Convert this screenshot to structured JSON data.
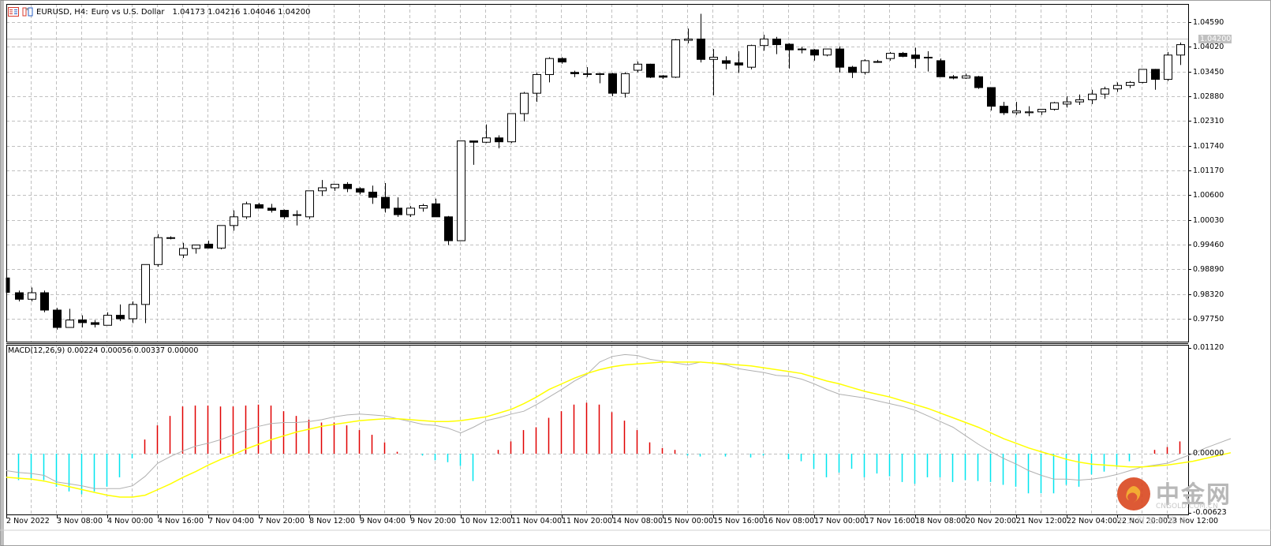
{
  "window": {
    "symbol_title": "EURUSD, H4:",
    "description": "Euro vs U.S. Dollar",
    "ohlc": "1.04173 1.04216 1.04046 1.04200",
    "icons": [
      "chart-list-icon",
      "chart-template-icon"
    ]
  },
  "price_axis": {
    "labels": [
      "1.04590",
      "1.04020",
      "1.03450",
      "1.02880",
      "1.02310",
      "1.01740",
      "1.01170",
      "1.00600",
      "1.00030",
      "0.99460",
      "0.98890",
      "0.98320",
      "0.97750"
    ],
    "current_price": "1.04200"
  },
  "macd": {
    "label": "MACD(12,26,9) 0.00224 0.00056 0.00337 0.00000",
    "axis_labels": [
      "0.01120",
      "0.00000",
      "-0.00623"
    ]
  },
  "time_axis": {
    "labels": [
      "2 Nov 2022",
      "3 Nov 08:00",
      "4 Nov 00:00",
      "4 Nov 16:00",
      "7 Nov 04:00",
      "7 Nov 20:00",
      "8 Nov 12:00",
      "9 Nov 04:00",
      "9 Nov 20:00",
      "10 Nov 12:00",
      "11 Nov 04:00",
      "11 Nov 20:00",
      "14 Nov 08:00",
      "15 Nov 00:00",
      "15 Nov 16:00",
      "16 Nov 08:00",
      "17 Nov 00:00",
      "17 Nov 16:00",
      "18 Nov 08:00",
      "20 Nov 20:00",
      "21 Nov 12:00",
      "22 Nov 04:00",
      "22 Nov 20:00",
      "23 Nov 12:00"
    ]
  },
  "watermark": {
    "brand": "中金网",
    "domain": "CNGOLD.COM.CN",
    "tagline": "中 文 财 经 新 媒 体"
  },
  "colors": {
    "grid": "#c0c0c0",
    "bull_fill": "#ffffff",
    "bear_fill": "#000000",
    "macd_pos": "#e00000",
    "macd_neg": "#00e5ee",
    "signal_line": "#ffff00",
    "macd_line": "#b0b0b0",
    "price_line": "#c0c0c0"
  },
  "chart_data": {
    "type": "candlestick",
    "title": "EURUSD, H4: Euro vs U.S. Dollar",
    "timeframe": "H4",
    "ylim": [
      0.974,
      1.05
    ],
    "current_price": 1.042,
    "candles": [
      {
        "o": 0.987,
        "h": 0.987,
        "l": 0.9835,
        "c": 0.9835
      },
      {
        "o": 0.9835,
        "h": 0.984,
        "l": 0.9815,
        "c": 0.982
      },
      {
        "o": 0.982,
        "h": 0.9847,
        "l": 0.9815,
        "c": 0.9835
      },
      {
        "o": 0.9835,
        "h": 0.984,
        "l": 0.979,
        "c": 0.9795
      },
      {
        "o": 0.9795,
        "h": 0.98,
        "l": 0.975,
        "c": 0.9755
      },
      {
        "o": 0.9755,
        "h": 0.9798,
        "l": 0.9755,
        "c": 0.9772
      },
      {
        "o": 0.9772,
        "h": 0.9783,
        "l": 0.9755,
        "c": 0.9766
      },
      {
        "o": 0.9766,
        "h": 0.9772,
        "l": 0.9755,
        "c": 0.9762
      },
      {
        "o": 0.976,
        "h": 0.979,
        "l": 0.976,
        "c": 0.9783
      },
      {
        "o": 0.9783,
        "h": 0.9808,
        "l": 0.977,
        "c": 0.9775
      },
      {
        "o": 0.9775,
        "h": 0.9815,
        "l": 0.9765,
        "c": 0.9808
      },
      {
        "o": 0.9808,
        "h": 0.99,
        "l": 0.9765,
        "c": 0.99
      },
      {
        "o": 0.99,
        "h": 0.997,
        "l": 0.9895,
        "c": 0.9962
      },
      {
        "o": 0.9962,
        "h": 0.9965,
        "l": 0.9958,
        "c": 0.9962
      },
      {
        "o": 0.9922,
        "h": 0.995,
        "l": 0.9915,
        "c": 0.9937
      },
      {
        "o": 0.9937,
        "h": 0.9945,
        "l": 0.9925,
        "c": 0.9945
      },
      {
        "o": 0.9947,
        "h": 0.9955,
        "l": 0.9937,
        "c": 0.9938
      },
      {
        "o": 0.9938,
        "h": 0.999,
        "l": 0.9935,
        "c": 0.999
      },
      {
        "o": 0.999,
        "h": 1.0025,
        "l": 0.9978,
        "c": 1.001
      },
      {
        "o": 1.001,
        "h": 1.0045,
        "l": 1.0005,
        "c": 1.004
      },
      {
        "o": 1.0038,
        "h": 1.0042,
        "l": 1.003,
        "c": 1.003
      },
      {
        "o": 1.003,
        "h": 1.004,
        "l": 1.002,
        "c": 1.0025
      },
      {
        "o": 1.0025,
        "h": 1.0027,
        "l": 1.0005,
        "c": 1.001
      },
      {
        "o": 1.0015,
        "h": 1.0025,
        "l": 0.999,
        "c": 1.0015
      },
      {
        "o": 1.001,
        "h": 1.007,
        "l": 1.0005,
        "c": 1.007
      },
      {
        "o": 1.007,
        "h": 1.0095,
        "l": 1.0058,
        "c": 1.0077
      },
      {
        "o": 1.0077,
        "h": 1.0085,
        "l": 1.007,
        "c": 1.0085
      },
      {
        "o": 1.0085,
        "h": 1.009,
        "l": 1.0067,
        "c": 1.0075
      },
      {
        "o": 1.0075,
        "h": 1.0078,
        "l": 1.0062,
        "c": 1.0067
      },
      {
        "o": 1.0067,
        "h": 1.0082,
        "l": 1.004,
        "c": 1.0055
      },
      {
        "o": 1.0055,
        "h": 1.0088,
        "l": 1.002,
        "c": 1.003
      },
      {
        "o": 1.003,
        "h": 1.0055,
        "l": 1.001,
        "c": 1.0015
      },
      {
        "o": 1.0015,
        "h": 1.0035,
        "l": 1.001,
        "c": 1.003
      },
      {
        "o": 1.003,
        "h": 1.004,
        "l": 1.0022,
        "c": 1.0036
      },
      {
        "o": 1.004,
        "h": 1.0052,
        "l": 1.001,
        "c": 1.001
      },
      {
        "o": 1.001,
        "h": 1.0012,
        "l": 0.9945,
        "c": 0.9955
      },
      {
        "o": 0.9955,
        "h": 1.0185,
        "l": 0.9955,
        "c": 1.0185
      },
      {
        "o": 1.0185,
        "h": 1.0185,
        "l": 1.013,
        "c": 1.0182
      },
      {
        "o": 1.0182,
        "h": 1.0223,
        "l": 1.018,
        "c": 1.0192
      },
      {
        "o": 1.0192,
        "h": 1.0198,
        "l": 1.0168,
        "c": 1.0183
      },
      {
        "o": 1.0183,
        "h": 1.0248,
        "l": 1.018,
        "c": 1.0248
      },
      {
        "o": 1.0248,
        "h": 1.0298,
        "l": 1.023,
        "c": 1.0295
      },
      {
        "o": 1.0295,
        "h": 1.0342,
        "l": 1.0275,
        "c": 1.0338
      },
      {
        "o": 1.0338,
        "h": 1.0378,
        "l": 1.032,
        "c": 1.0375
      },
      {
        "o": 1.0375,
        "h": 1.0378,
        "l": 1.0363,
        "c": 1.0367
      },
      {
        "o": 1.0343,
        "h": 1.0347,
        "l": 1.0332,
        "c": 1.034
      },
      {
        "o": 1.034,
        "h": 1.0355,
        "l": 1.0332,
        "c": 1.034
      },
      {
        "o": 1.034,
        "h": 1.0342,
        "l": 1.0318,
        "c": 1.034
      },
      {
        "o": 1.034,
        "h": 1.0342,
        "l": 1.0288,
        "c": 1.0295
      },
      {
        "o": 1.0295,
        "h": 1.0343,
        "l": 1.0285,
        "c": 1.034
      },
      {
        "o": 1.0348,
        "h": 1.0368,
        "l": 1.0343,
        "c": 1.0362
      },
      {
        "o": 1.0362,
        "h": 1.0363,
        "l": 1.033,
        "c": 1.0332
      },
      {
        "o": 1.0335,
        "h": 1.0337,
        "l": 1.0328,
        "c": 1.0332
      },
      {
        "o": 1.0332,
        "h": 1.042,
        "l": 1.033,
        "c": 1.0418
      },
      {
        "o": 1.0417,
        "h": 1.0444,
        "l": 1.041,
        "c": 1.042
      },
      {
        "o": 1.042,
        "h": 1.0478,
        "l": 1.0366,
        "c": 1.0373
      },
      {
        "o": 1.0373,
        "h": 1.0397,
        "l": 1.029,
        "c": 1.0378
      },
      {
        "o": 1.037,
        "h": 1.038,
        "l": 1.035,
        "c": 1.0364
      },
      {
        "o": 1.0365,
        "h": 1.0392,
        "l": 1.0342,
        "c": 1.036
      },
      {
        "o": 1.0355,
        "h": 1.0407,
        "l": 1.035,
        "c": 1.0405
      },
      {
        "o": 1.0405,
        "h": 1.043,
        "l": 1.0393,
        "c": 1.042
      },
      {
        "o": 1.042,
        "h": 1.0425,
        "l": 1.0385,
        "c": 1.0407
      },
      {
        "o": 1.0408,
        "h": 1.041,
        "l": 1.0352,
        "c": 1.0395
      },
      {
        "o": 1.0397,
        "h": 1.0402,
        "l": 1.0387,
        "c": 1.0397
      },
      {
        "o": 1.0395,
        "h": 1.0397,
        "l": 1.037,
        "c": 1.0383
      },
      {
        "o": 1.0383,
        "h": 1.0397,
        "l": 1.038,
        "c": 1.0397
      },
      {
        "o": 1.0397,
        "h": 1.0403,
        "l": 1.0343,
        "c": 1.0355
      },
      {
        "o": 1.0355,
        "h": 1.0358,
        "l": 1.033,
        "c": 1.0343
      },
      {
        "o": 1.0343,
        "h": 1.0373,
        "l": 1.0338,
        "c": 1.037
      },
      {
        "o": 1.0368,
        "h": 1.0372,
        "l": 1.0365,
        "c": 1.0368
      },
      {
        "o": 1.0375,
        "h": 1.039,
        "l": 1.037,
        "c": 1.0387
      },
      {
        "o": 1.0387,
        "h": 1.039,
        "l": 1.0378,
        "c": 1.038
      },
      {
        "o": 1.0383,
        "h": 1.04,
        "l": 1.0353,
        "c": 1.0375
      },
      {
        "o": 1.0378,
        "h": 1.0392,
        "l": 1.0345,
        "c": 1.0378
      },
      {
        "o": 1.037,
        "h": 1.0375,
        "l": 1.034,
        "c": 1.0333
      },
      {
        "o": 1.0333,
        "h": 1.0337,
        "l": 1.0327,
        "c": 1.033
      },
      {
        "o": 1.033,
        "h": 1.034,
        "l": 1.0328,
        "c": 1.0335
      },
      {
        "o": 1.0333,
        "h": 1.0335,
        "l": 1.0305,
        "c": 1.0308
      },
      {
        "o": 1.0308,
        "h": 1.0309,
        "l": 1.0255,
        "c": 1.0265
      },
      {
        "o": 1.0265,
        "h": 1.0275,
        "l": 1.0245,
        "c": 1.025
      },
      {
        "o": 1.025,
        "h": 1.0275,
        "l": 1.0245,
        "c": 1.0254
      },
      {
        "o": 1.025,
        "h": 1.0265,
        "l": 1.0242,
        "c": 1.0252
      },
      {
        "o": 1.0252,
        "h": 1.0258,
        "l": 1.0245,
        "c": 1.0258
      },
      {
        "o": 1.0258,
        "h": 1.0275,
        "l": 1.0255,
        "c": 1.0273
      },
      {
        "o": 1.027,
        "h": 1.0288,
        "l": 1.0262,
        "c": 1.0275
      },
      {
        "o": 1.0275,
        "h": 1.0292,
        "l": 1.0268,
        "c": 1.028
      },
      {
        "o": 1.028,
        "h": 1.0303,
        "l": 1.027,
        "c": 1.0293
      },
      {
        "o": 1.0293,
        "h": 1.031,
        "l": 1.0282,
        "c": 1.0305
      },
      {
        "o": 1.0305,
        "h": 1.032,
        "l": 1.0298,
        "c": 1.0313
      },
      {
        "o": 1.0313,
        "h": 1.0323,
        "l": 1.0307,
        "c": 1.032
      },
      {
        "o": 1.032,
        "h": 1.035,
        "l": 1.0318,
        "c": 1.035
      },
      {
        "o": 1.035,
        "h": 1.0351,
        "l": 1.0303,
        "c": 1.0327
      },
      {
        "o": 1.0327,
        "h": 1.039,
        "l": 1.0323,
        "c": 1.0383
      },
      {
        "o": 1.0383,
        "h": 1.0412,
        "l": 1.036,
        "c": 1.0407
      },
      {
        "o": 1.0407,
        "h": 1.0425,
        "l": 1.0398,
        "c": 1.042
      },
      {
        "o": 1.0417,
        "h": 1.0422,
        "l": 1.0405,
        "c": 1.042
      }
    ],
    "macd_subwindow": {
      "params": "MACD(12,26,9)",
      "values": {
        "macd": 0.00224,
        "signal": 0.00056,
        "osma": 0.00337,
        "extra": 0.0
      },
      "ylim": [
        -0.00623,
        0.0112
      ],
      "histogram": [
        -0.0028,
        -0.0026,
        -0.0028,
        -0.0035,
        -0.004,
        -0.0043,
        -0.004,
        -0.0035,
        -0.0025,
        -0.0005,
        0.0015,
        0.003,
        0.004,
        0.005,
        0.0051,
        0.0051,
        0.005,
        0.005,
        0.0051,
        0.0052,
        0.0051,
        0.0045,
        0.004,
        0.0036,
        0.0033,
        0.0033,
        0.003,
        0.0025,
        0.002,
        0.0012,
        0.0002,
        0.0,
        -0.0002,
        -0.0007,
        -0.0009,
        -0.0013,
        -0.0029,
        0.0,
        0.0004,
        0.0013,
        0.0025,
        0.0028,
        0.0038,
        0.0045,
        0.0052,
        0.0054,
        0.0052,
        0.0044,
        0.0035,
        0.0025,
        0.0012,
        0.0006,
        0.0004,
        -0.0002,
        -0.0003,
        0.0,
        -0.0003,
        0.0,
        -0.0004,
        -0.0002,
        0.0,
        -0.0006,
        -0.0008,
        -0.0016,
        -0.0025,
        -0.002,
        -0.0016,
        -0.0025,
        -0.0021,
        -0.0024,
        -0.003,
        -0.0032,
        -0.0025,
        -0.0025,
        -0.003,
        -0.0028,
        -0.0029,
        -0.003,
        -0.0033,
        -0.0035,
        -0.0042,
        -0.0042,
        -0.0042,
        -0.0033,
        -0.0035,
        -0.0022,
        -0.0019,
        -0.0014,
        -0.0008,
        0.0,
        0.0004,
        0.0007,
        0.0013,
        0.0012,
        0.0021,
        0.0024,
        0.003
      ],
      "macd_line": [
        -0.0018,
        -0.002,
        -0.0021,
        -0.0023,
        -0.003,
        -0.0032,
        -0.0034,
        -0.0037,
        -0.0037,
        -0.0037,
        -0.0034,
        -0.0024,
        -0.001,
        -0.0003,
        0.0003,
        0.0008,
        0.0011,
        0.0015,
        0.002,
        0.0025,
        0.0029,
        0.0032,
        0.0033,
        0.0033,
        0.0034,
        0.0036,
        0.0039,
        0.0041,
        0.0042,
        0.0041,
        0.004,
        0.0037,
        0.0034,
        0.0031,
        0.003,
        0.0027,
        0.0022,
        0.0028,
        0.0035,
        0.0038,
        0.0042,
        0.0045,
        0.0052,
        0.006,
        0.0068,
        0.0077,
        0.0084,
        0.0097,
        0.0103,
        0.0105,
        0.0104,
        0.01,
        0.0098,
        0.0096,
        0.0094,
        0.0097,
        0.0096,
        0.0094,
        0.009,
        0.0088,
        0.0086,
        0.0083,
        0.0082,
        0.0079,
        0.0074,
        0.0068,
        0.0063,
        0.0061,
        0.0059,
        0.0056,
        0.0053,
        0.005,
        0.0046,
        0.004,
        0.0034,
        0.0028,
        0.0019,
        0.001,
        0.0002,
        -0.0005,
        -0.0011,
        -0.0018,
        -0.0023,
        -0.0027,
        -0.0027,
        -0.0028,
        -0.0027,
        -0.0025,
        -0.0022,
        -0.0018,
        -0.0014,
        -0.0012,
        -0.001,
        -0.0005,
        0.0,
        0.0006,
        0.0011,
        0.0016
      ],
      "signal_line": [
        -0.0025,
        -0.0026,
        -0.0027,
        -0.0029,
        -0.0032,
        -0.0035,
        -0.0038,
        -0.0041,
        -0.0044,
        -0.0046,
        -0.0046,
        -0.0044,
        -0.0038,
        -0.0032,
        -0.0025,
        -0.0019,
        -0.0012,
        -0.0006,
        -0.0001,
        0.0005,
        0.001,
        0.0015,
        0.0019,
        0.0023,
        0.0026,
        0.0029,
        0.0031,
        0.0033,
        0.0035,
        0.0036,
        0.0037,
        0.0037,
        0.0036,
        0.0035,
        0.0034,
        0.0034,
        0.0035,
        0.0037,
        0.0039,
        0.0043,
        0.0047,
        0.0053,
        0.006,
        0.0068,
        0.0074,
        0.008,
        0.0085,
        0.0089,
        0.0092,
        0.0094,
        0.0095,
        0.0096,
        0.0097,
        0.0097,
        0.0097,
        0.0097,
        0.0096,
        0.0095,
        0.0094,
        0.0093,
        0.0091,
        0.0089,
        0.0087,
        0.0085,
        0.0081,
        0.0077,
        0.0074,
        0.007,
        0.0066,
        0.0063,
        0.006,
        0.0056,
        0.0052,
        0.0048,
        0.0043,
        0.0038,
        0.0033,
        0.0028,
        0.0022,
        0.0016,
        0.0011,
        0.0006,
        0.0002,
        -0.0002,
        -0.0006,
        -0.0009,
        -0.0011,
        -0.0012,
        -0.0013,
        -0.0014,
        -0.0014,
        -0.0013,
        -0.0012,
        -0.001,
        -0.0008,
        -0.0005,
        -0.0002,
        0.0001
      ]
    }
  }
}
